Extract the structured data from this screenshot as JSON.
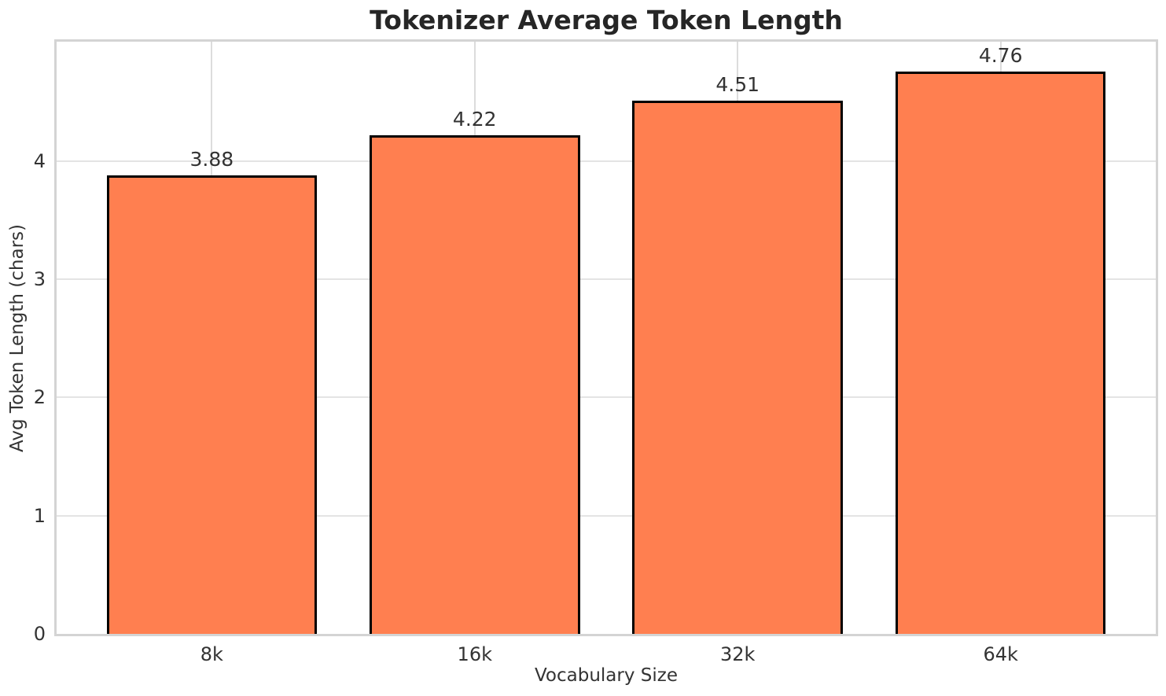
{
  "chart_data": {
    "type": "bar",
    "title": "Tokenizer Average Token Length",
    "xlabel": "Vocabulary Size",
    "ylabel": "Avg Token Length (chars)",
    "categories": [
      "8k",
      "16k",
      "32k",
      "64k"
    ],
    "values": [
      3.88,
      4.22,
      4.51,
      4.76
    ],
    "value_labels": [
      "3.88",
      "4.22",
      "4.51",
      "4.76"
    ],
    "yticks": [
      0,
      1,
      2,
      3,
      4
    ],
    "ytick_labels": [
      "0",
      "1",
      "2",
      "3",
      "4"
    ],
    "ylim": [
      0,
      5.01
    ],
    "xlim": [
      -0.59,
      3.59
    ],
    "bar_width_units": 0.8,
    "grid": true,
    "legend": false,
    "colors": {
      "bar_fill": "#ff7f50",
      "bar_edge": "#000000",
      "h_grid": "#e4e4e4",
      "v_grid": "#dcdcdc",
      "spine": "#d4d4d4",
      "title_text": "#262626",
      "tick_text": "#333333",
      "background": "#ffffff"
    }
  }
}
